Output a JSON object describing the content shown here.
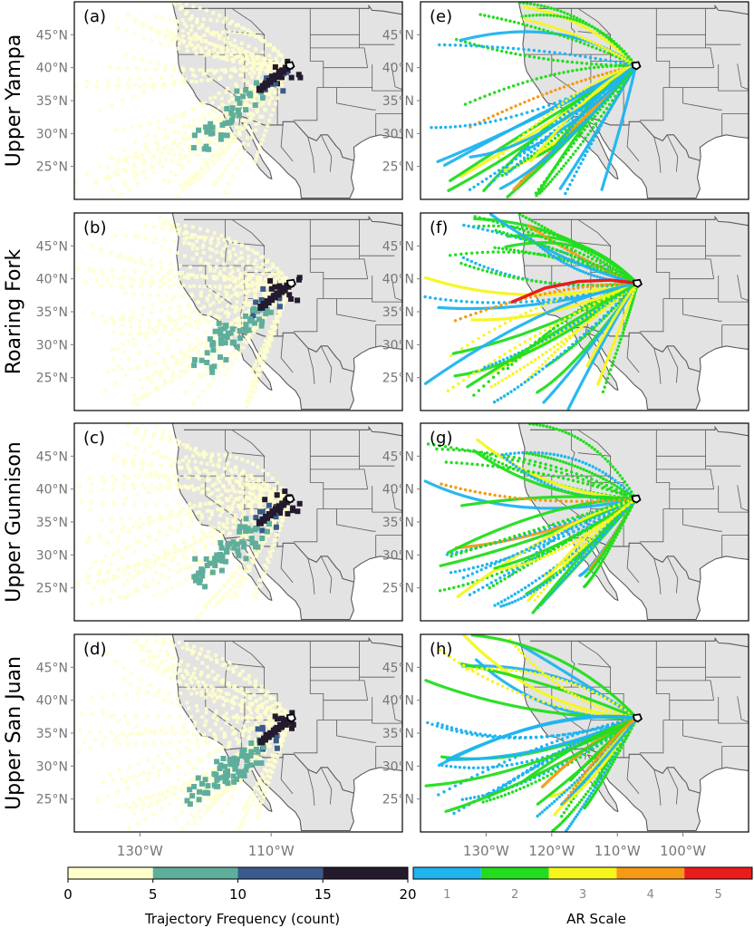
{
  "rows": [
    {
      "label": "Upper Yampa"
    },
    {
      "label": "Roaring Fork"
    },
    {
      "label": "Upper Gunnison"
    },
    {
      "label": "Upper San Juan"
    }
  ],
  "panels": [
    "(a)",
    "(b)",
    "(c)",
    "(d)",
    "(e)",
    "(f)",
    "(g)",
    "(h)"
  ],
  "lat_ticks": [
    "45°N",
    "40°N",
    "35°N",
    "30°N",
    "25°N"
  ],
  "lon_ticks_left": [
    "130°W",
    "110°W"
  ],
  "lon_ticks_right": [
    "130°W",
    "120°W",
    "110°W",
    "100°W"
  ],
  "colorbar_freq": {
    "label": "Trajectory Frequency (count)",
    "ticks": [
      "0",
      "5",
      "10",
      "15",
      "20"
    ],
    "colors": [
      "#ffffcc",
      "#5fae9c",
      "#3a5a8c",
      "#231a2e"
    ]
  },
  "colorbar_ar": {
    "label": "AR Scale",
    "ticks": [
      "1",
      "2",
      "3",
      "4",
      "5"
    ],
    "colors": [
      "#1fb4ef",
      "#22dd1e",
      "#f6f61e",
      "#f59a12",
      "#e81c1c"
    ]
  },
  "chart_data": [
    {
      "type": "heatmap",
      "panel": "(a)",
      "basin": "Upper Yampa",
      "basin_lon": -107.2,
      "basin_lat": 40.3,
      "peak_count": 20,
      "colorbar": "Trajectory Frequency (count)",
      "xlim": [
        -140,
        -90
      ],
      "ylim": [
        20,
        50
      ]
    },
    {
      "type": "heatmap",
      "panel": "(b)",
      "basin": "Roaring Fork",
      "basin_lon": -107.0,
      "basin_lat": 39.3,
      "peak_count": 20,
      "colorbar": "Trajectory Frequency (count)",
      "xlim": [
        -140,
        -90
      ],
      "ylim": [
        20,
        50
      ]
    },
    {
      "type": "heatmap",
      "panel": "(c)",
      "basin": "Upper Gunnison",
      "basin_lon": -107.2,
      "basin_lat": 38.5,
      "peak_count": 20,
      "colorbar": "Trajectory Frequency (count)",
      "xlim": [
        -140,
        -90
      ],
      "ylim": [
        20,
        50
      ]
    },
    {
      "type": "heatmap",
      "panel": "(d)",
      "basin": "Upper San Juan",
      "basin_lon": -107.0,
      "basin_lat": 37.3,
      "peak_count": 15,
      "colorbar": "Trajectory Frequency (count)",
      "xlim": [
        -140,
        -90
      ],
      "ylim": [
        20,
        50
      ]
    },
    {
      "type": "line",
      "panel": "(e)",
      "basin": "Upper Yampa",
      "color_scale": "AR Scale",
      "ar_levels": [
        1,
        2,
        3,
        4
      ],
      "dominant_ar": 2,
      "xlim": [
        -140,
        -90
      ],
      "ylim": [
        20,
        50
      ]
    },
    {
      "type": "line",
      "panel": "(f)",
      "basin": "Roaring Fork",
      "color_scale": "AR Scale",
      "ar_levels": [
        1,
        2,
        3,
        4,
        5
      ],
      "dominant_ar": 2,
      "xlim": [
        -140,
        -90
      ],
      "ylim": [
        20,
        50
      ]
    },
    {
      "type": "line",
      "panel": "(g)",
      "basin": "Upper Gunnison",
      "color_scale": "AR Scale",
      "ar_levels": [
        1,
        2,
        3,
        4
      ],
      "dominant_ar": 2,
      "xlim": [
        -140,
        -90
      ],
      "ylim": [
        20,
        50
      ]
    },
    {
      "type": "line",
      "panel": "(h)",
      "basin": "Upper San Juan",
      "color_scale": "AR Scale",
      "ar_levels": [
        1,
        2,
        3,
        4
      ],
      "dominant_ar": 1,
      "xlim": [
        -140,
        -90
      ],
      "ylim": [
        20,
        50
      ]
    }
  ]
}
